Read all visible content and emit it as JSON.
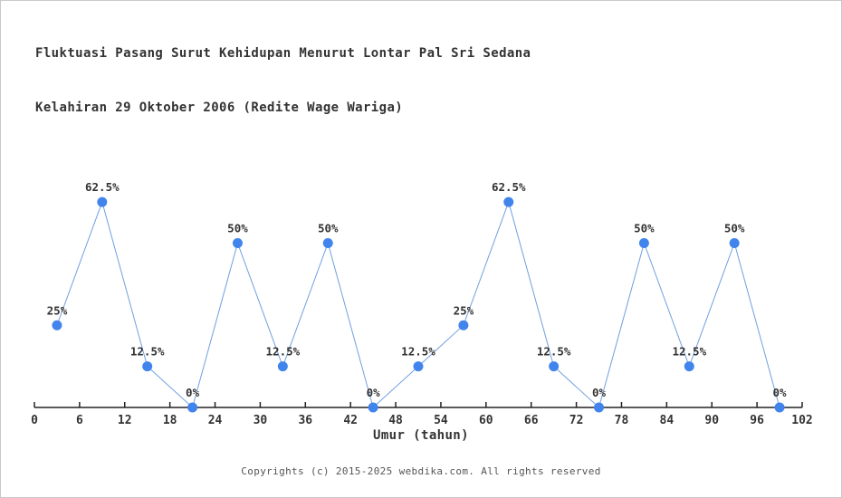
{
  "page": {
    "title_line1": "Fluktuasi Pasang Surut Kehidupan Menurut Lontar Pal Sri Sedana",
    "title_line2": "Kelahiran 29 Oktober 2006 (Redite Wage Wariga)",
    "footer": "Copyrights (c) 2015-2025 webdika.com. All rights reserved"
  },
  "chart_data": {
    "type": "line",
    "title": "Fluktuasi Pasang Surut Kehidupan Menurut Lontar Pal Sri Sedana",
    "subtitle": "Kelahiran 29 Oktober 2006 (Redite Wage Wariga)",
    "xlabel": "Umur (tahun)",
    "ylabel": "",
    "x": [
      3,
      9,
      15,
      21,
      27,
      33,
      39,
      45,
      51,
      57,
      63,
      69,
      75,
      81,
      87,
      93,
      99
    ],
    "values": [
      25,
      62.5,
      12.5,
      0,
      50,
      12.5,
      50,
      0,
      12.5,
      25,
      62.5,
      12.5,
      0,
      50,
      12.5,
      50,
      0
    ],
    "point_labels": [
      "25%",
      "62.5%",
      "12.5%",
      "0%",
      "50%",
      "12.5%",
      "50%",
      "0%",
      "12.5%",
      "25%",
      "62.5%",
      "12.5%",
      "0%",
      "50%",
      "12.5%",
      "50%",
      "0%"
    ],
    "xticks": [
      0,
      6,
      12,
      18,
      24,
      30,
      36,
      42,
      48,
      54,
      60,
      66,
      72,
      78,
      84,
      90,
      96,
      102
    ],
    "xlim": [
      0,
      102
    ],
    "ylim": [
      0,
      100
    ],
    "grid": false,
    "legend": "none",
    "colors": {
      "marker": "#4184ec",
      "line": "#6f9fe0",
      "axis": "#222222",
      "labels": "#333333",
      "footer": "#555555"
    }
  }
}
